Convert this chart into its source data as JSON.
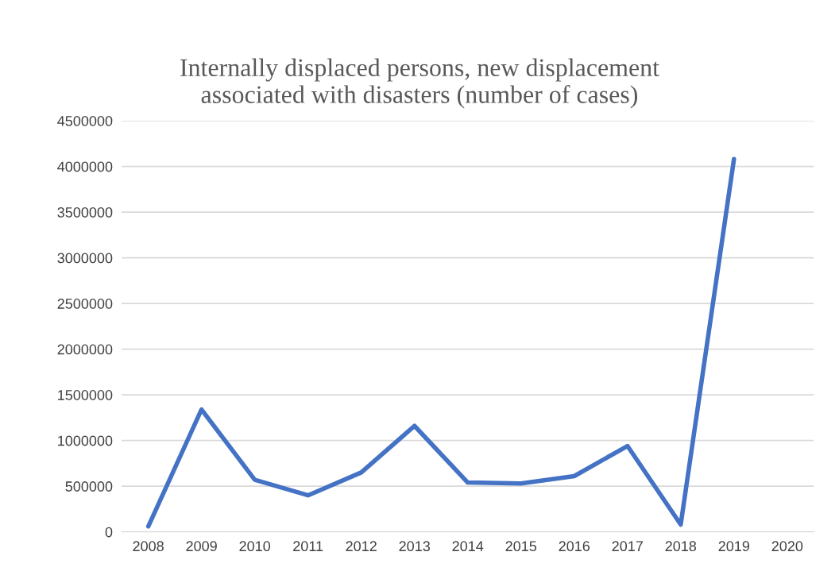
{
  "chart_data": {
    "type": "line",
    "title": "Internally displaced persons, new displacement\nassociated with disasters (number of cases)",
    "categories": [
      "2008",
      "2009",
      "2010",
      "2011",
      "2012",
      "2013",
      "2014",
      "2015",
      "2016",
      "2017",
      "2018",
      "2019",
      "2020"
    ],
    "series": [
      {
        "color": "#4472c4",
        "values": [
          60000,
          1340000,
          570000,
          400000,
          650000,
          1160000,
          540000,
          530000,
          610000,
          940000,
          80000,
          4080000,
          null
        ]
      }
    ],
    "ylim": [
      0,
      4500000
    ],
    "yticks": [
      0,
      500000,
      1000000,
      1500000,
      2000000,
      2500000,
      3000000,
      3500000,
      4000000,
      4500000
    ],
    "grid": "y",
    "legend": false,
    "marker": "none",
    "line_style": "solid"
  }
}
